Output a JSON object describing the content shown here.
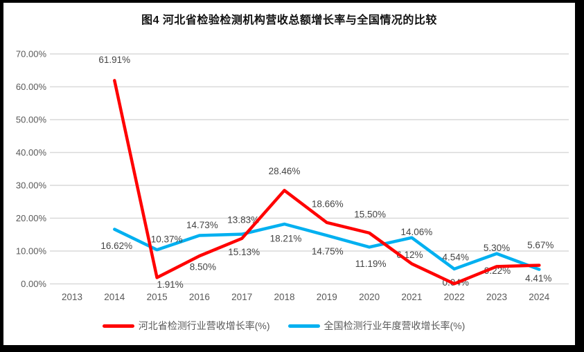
{
  "chart_data": {
    "type": "line",
    "title": "图4  河北省检验检测机构营收总额增长率与全国情况的比较",
    "categories": [
      "2013",
      "2014",
      "2015",
      "2016",
      "2017",
      "2018",
      "2019",
      "2020",
      "2021",
      "2022",
      "2023",
      "2024"
    ],
    "grid": true,
    "legend_position": "bottom",
    "y_axis": {
      "min": 0,
      "max": 70,
      "ticks": [
        {
          "label": "70.00%",
          "value": 70
        },
        {
          "label": "60.00%",
          "value": 60
        },
        {
          "label": "50.00%",
          "value": 50
        },
        {
          "label": "40.00%",
          "value": 40
        },
        {
          "label": "30.00%",
          "value": 30
        },
        {
          "label": "20.00%",
          "value": 20
        },
        {
          "label": "10.00%",
          "value": 10
        },
        {
          "label": "0.00%",
          "value": 0
        }
      ]
    },
    "series": [
      {
        "name": "河北省检测行业营收增长率(%)",
        "color": "#FF0000",
        "start_index": 1,
        "values": [
          61.91,
          1.91,
          8.5,
          13.83,
          28.46,
          18.66,
          15.5,
          6.12,
          0.04,
          5.3,
          5.67
        ],
        "labels": [
          "61.91%",
          "1.91%",
          "8.50%",
          "13.83%",
          "28.46%",
          "18.66%",
          "15.50%",
          "6.12%",
          "0.04%",
          "5.30%",
          "5.67%"
        ],
        "label_offsets": [
          [
            0,
            -30
          ],
          [
            19,
            10
          ],
          [
            5,
            16
          ],
          [
            2,
            -27
          ],
          [
            0,
            -28
          ],
          [
            1,
            -27
          ],
          [
            1,
            -27
          ],
          [
            -3,
            -13
          ],
          [
            2,
            -2
          ],
          [
            0,
            -27
          ],
          [
            2,
            -29
          ]
        ]
      },
      {
        "name": "全国检测行业年度营收增长率(%)",
        "color": "#00B0F0",
        "start_index": 1,
        "values": [
          16.62,
          10.37,
          14.73,
          15.13,
          18.21,
          14.75,
          11.19,
          14.06,
          4.54,
          9.22,
          4.41
        ],
        "labels": [
          "16.62%",
          "10.37%",
          "14.73%",
          "15.13%",
          "18.21%",
          "14.75%",
          "11.19%",
          "14.06%",
          "4.54%",
          "9.22%",
          "4.41%"
        ],
        "label_offsets": [
          [
            3,
            24
          ],
          [
            14,
            -15
          ],
          [
            4,
            -15
          ],
          [
            3,
            26
          ],
          [
            2,
            21
          ],
          [
            1,
            23
          ],
          [
            2,
            24
          ],
          [
            7,
            -8
          ],
          [
            2,
            -17
          ],
          [
            1,
            25
          ],
          [
            -1,
            13
          ]
        ]
      }
    ],
    "style": {
      "gridline_color": "#D9D9D9",
      "axis_text_color": "#595959",
      "data_label_color": "#444444",
      "line_width": 4.5
    }
  },
  "legend": {
    "items": [
      {
        "label": "河北省检测行业营收增长率(%)",
        "color": "#FF0000"
      },
      {
        "label": "全国检测行业年度营收增长率(%)",
        "color": "#00B0F0"
      }
    ]
  }
}
